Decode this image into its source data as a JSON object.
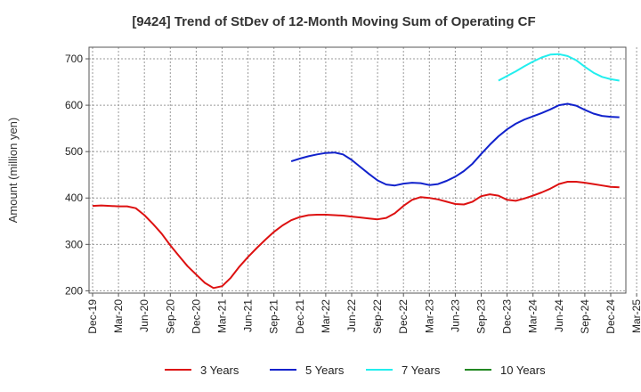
{
  "chart_data": {
    "type": "line",
    "title": "[9424]  Trend of StDev of 12-Month Moving Sum of Operating CF",
    "xlabel": "",
    "ylabel": "Amount (million yen)",
    "ylim": [
      195,
      725
    ],
    "yticks": [
      200,
      300,
      400,
      500,
      600,
      700
    ],
    "x_tick_labels": [
      "Dec-19",
      "Mar-20",
      "Jun-20",
      "Sep-20",
      "Dec-20",
      "Mar-21",
      "Jun-21",
      "Sep-21",
      "Dec-21",
      "Mar-22",
      "Jun-22",
      "Sep-22",
      "Dec-22",
      "Mar-23",
      "Jun-23",
      "Sep-23",
      "Dec-23",
      "Mar-24",
      "Jun-24",
      "Sep-24",
      "Dec-24",
      "Mar-25"
    ],
    "grid": true,
    "legend_position": "bottom",
    "series": [
      {
        "name": "3 Years",
        "color": "#dd1111",
        "values": [
          [
            "2019-12",
            383
          ],
          [
            "2020-01",
            384
          ],
          [
            "2020-02",
            383
          ],
          [
            "2020-03",
            382
          ],
          [
            "2020-04",
            382
          ],
          [
            "2020-05",
            378
          ],
          [
            "2020-06",
            363
          ],
          [
            "2020-07",
            344
          ],
          [
            "2020-08",
            323
          ],
          [
            "2020-09",
            298
          ],
          [
            "2020-10",
            275
          ],
          [
            "2020-11",
            253
          ],
          [
            "2020-12",
            235
          ],
          [
            "2021-01",
            217
          ],
          [
            "2021-02",
            206
          ],
          [
            "2021-03",
            210
          ],
          [
            "2021-04",
            228
          ],
          [
            "2021-05",
            252
          ],
          [
            "2021-06",
            273
          ],
          [
            "2021-07",
            292
          ],
          [
            "2021-08",
            310
          ],
          [
            "2021-09",
            327
          ],
          [
            "2021-10",
            341
          ],
          [
            "2021-11",
            352
          ],
          [
            "2021-12",
            359
          ],
          [
            "2022-01",
            363
          ],
          [
            "2022-02",
            364
          ],
          [
            "2022-03",
            364
          ],
          [
            "2022-04",
            363
          ],
          [
            "2022-05",
            362
          ],
          [
            "2022-06",
            360
          ],
          [
            "2022-07",
            358
          ],
          [
            "2022-08",
            356
          ],
          [
            "2022-09",
            354
          ],
          [
            "2022-10",
            357
          ],
          [
            "2022-11",
            367
          ],
          [
            "2022-12",
            383
          ],
          [
            "2023-01",
            396
          ],
          [
            "2023-02",
            402
          ],
          [
            "2023-03",
            400
          ],
          [
            "2023-04",
            397
          ],
          [
            "2023-05",
            392
          ],
          [
            "2023-06",
            387
          ],
          [
            "2023-07",
            386
          ],
          [
            "2023-08",
            392
          ],
          [
            "2023-09",
            404
          ],
          [
            "2023-10",
            408
          ],
          [
            "2023-11",
            405
          ],
          [
            "2023-12",
            396
          ],
          [
            "2024-01",
            394
          ],
          [
            "2024-02",
            399
          ],
          [
            "2024-03",
            405
          ],
          [
            "2024-04",
            412
          ],
          [
            "2024-05",
            420
          ],
          [
            "2024-06",
            430
          ],
          [
            "2024-07",
            435
          ],
          [
            "2024-08",
            435
          ],
          [
            "2024-09",
            433
          ],
          [
            "2024-10",
            430
          ],
          [
            "2024-11",
            427
          ],
          [
            "2024-12",
            424
          ],
          [
            "2025-01",
            423
          ]
        ]
      },
      {
        "name": "5 Years",
        "color": "#1122cc",
        "values": [
          [
            "2021-11",
            479
          ],
          [
            "2021-12",
            485
          ],
          [
            "2022-01",
            490
          ],
          [
            "2022-02",
            494
          ],
          [
            "2022-03",
            497
          ],
          [
            "2022-04",
            498
          ],
          [
            "2022-05",
            494
          ],
          [
            "2022-06",
            482
          ],
          [
            "2022-07",
            467
          ],
          [
            "2022-08",
            452
          ],
          [
            "2022-09",
            438
          ],
          [
            "2022-10",
            429
          ],
          [
            "2022-11",
            427
          ],
          [
            "2022-12",
            431
          ],
          [
            "2023-01",
            433
          ],
          [
            "2023-02",
            432
          ],
          [
            "2023-03",
            428
          ],
          [
            "2023-04",
            430
          ],
          [
            "2023-05",
            437
          ],
          [
            "2023-06",
            446
          ],
          [
            "2023-07",
            458
          ],
          [
            "2023-08",
            474
          ],
          [
            "2023-09",
            495
          ],
          [
            "2023-10",
            515
          ],
          [
            "2023-11",
            533
          ],
          [
            "2023-12",
            548
          ],
          [
            "2024-01",
            560
          ],
          [
            "2024-02",
            569
          ],
          [
            "2024-03",
            576
          ],
          [
            "2024-04",
            583
          ],
          [
            "2024-05",
            591
          ],
          [
            "2024-06",
            600
          ],
          [
            "2024-07",
            603
          ],
          [
            "2024-08",
            599
          ],
          [
            "2024-09",
            590
          ],
          [
            "2024-10",
            582
          ],
          [
            "2024-11",
            577
          ],
          [
            "2024-12",
            575
          ],
          [
            "2025-01",
            574
          ]
        ]
      },
      {
        "name": "7 Years",
        "color": "#22eeee",
        "values": [
          [
            "2023-11",
            653
          ],
          [
            "2023-12",
            663
          ],
          [
            "2024-01",
            673
          ],
          [
            "2024-02",
            684
          ],
          [
            "2024-03",
            694
          ],
          [
            "2024-04",
            703
          ],
          [
            "2024-05",
            709
          ],
          [
            "2024-06",
            710
          ],
          [
            "2024-07",
            706
          ],
          [
            "2024-08",
            697
          ],
          [
            "2024-09",
            683
          ],
          [
            "2024-10",
            670
          ],
          [
            "2024-11",
            661
          ],
          [
            "2024-12",
            656
          ],
          [
            "2025-01",
            653
          ]
        ]
      },
      {
        "name": "10 Years",
        "color": "#228822",
        "values": []
      }
    ]
  }
}
